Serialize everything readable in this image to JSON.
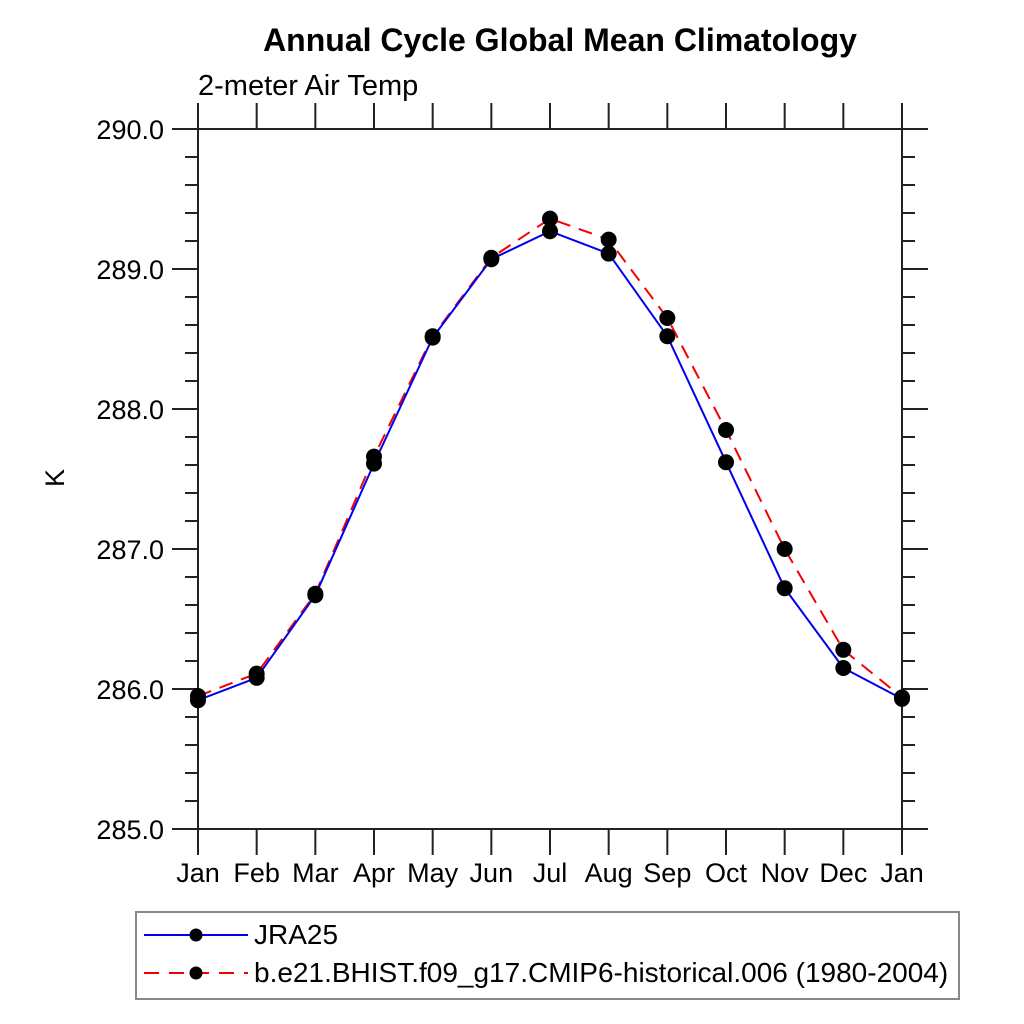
{
  "title": "Annual Cycle Global Mean Climatology",
  "subtitle": "2-meter Air Temp",
  "ylabel": "K",
  "colors": {
    "series1": "#0000ee",
    "series2": "#f50000",
    "marker": "#000000",
    "axis": "#222222",
    "legend_border": "#888888"
  },
  "chart_data": {
    "type": "line",
    "x": [
      "Jan",
      "Feb",
      "Mar",
      "Apr",
      "May",
      "Jun",
      "Jul",
      "Aug",
      "Sep",
      "Oct",
      "Nov",
      "Dec",
      "Jan"
    ],
    "series": [
      {
        "name": "JRA25",
        "color": "#0000ee",
        "line_style": "solid",
        "marker": "filled-circle",
        "values": [
          285.92,
          286.08,
          286.67,
          287.61,
          288.51,
          289.07,
          289.27,
          289.11,
          288.52,
          287.62,
          286.72,
          286.15,
          285.93
        ]
      },
      {
        "name": "b.e21.BHIST.f09_g17.CMIP6-historical.006 (1980-2004)",
        "color": "#f50000",
        "line_style": "dashed",
        "marker": "filled-circle",
        "values": [
          285.95,
          286.11,
          286.68,
          287.66,
          288.52,
          289.08,
          289.36,
          289.21,
          288.65,
          287.85,
          287.0,
          286.28,
          285.94
        ]
      }
    ],
    "ylim": [
      285.0,
      290.0
    ],
    "ytick_major": 1.0,
    "ytick_minor": 0.2,
    "ytick_label_format": 1,
    "grid": false,
    "legend_position": "bottom-left"
  }
}
